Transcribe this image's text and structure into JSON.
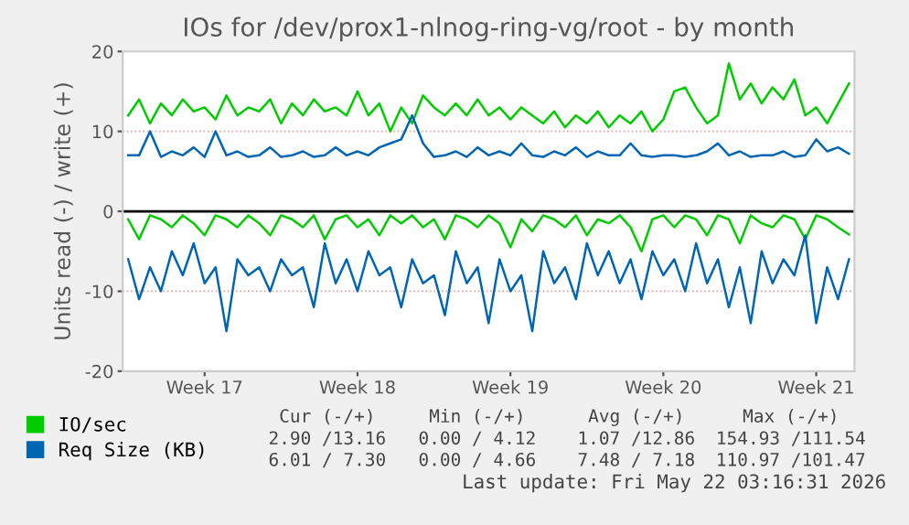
{
  "chart_data": {
    "type": "line",
    "title": "IOs for /dev/prox1-nlnog-ring-vg/root - by month",
    "ylabel": "Units read (-) / write (+)",
    "series": [
      {
        "name": "IO/sec",
        "color": "#00cc00",
        "values": [
          12,
          14,
          11,
          13.5,
          12,
          14,
          12.5,
          13,
          11.5,
          14.5,
          12,
          13,
          12.5,
          14,
          11,
          13.5,
          12,
          14,
          12.5,
          13,
          12,
          15,
          12,
          13.5,
          10,
          13,
          11,
          14.5,
          13,
          12,
          13.5,
          12,
          14,
          12,
          13,
          11.5,
          13,
          12,
          11,
          12.5,
          10.5,
          12,
          11,
          12.5,
          10.5,
          12,
          11,
          12.5,
          10,
          11.5,
          15,
          15.5,
          13,
          11,
          12,
          18.5,
          14,
          16,
          13.5,
          15.5,
          14,
          16.5,
          12,
          13,
          11,
          13.5,
          16
        ]
      },
      {
        "color": "#00cc00",
        "values": [
          -1,
          -3.5,
          -0.5,
          -1,
          -2,
          -0.5,
          -1.5,
          -3,
          -0.5,
          -1,
          -2,
          -0.5,
          -1.5,
          -3,
          -0.5,
          -1,
          -2,
          -0.5,
          -3.5,
          -1,
          -0.5,
          -2,
          -1,
          -3,
          -0.5,
          -1.5,
          -0.5,
          -2,
          -1,
          -3.5,
          -0.5,
          -1,
          -2,
          -0.5,
          -1.5,
          -4.5,
          -1,
          -2.5,
          -0.5,
          -1,
          -2,
          -0.5,
          -3,
          -1,
          -1.5,
          -0.5,
          -2,
          -5,
          -1,
          -0.5,
          -2,
          -0.5,
          -1,
          -3,
          -0.5,
          -1,
          -4,
          -0.5,
          -1.5,
          -2,
          -0.5,
          -1,
          -3.5,
          -0.5,
          -1,
          -2,
          -2.9
        ]
      },
      {
        "name": "Req Size (KB)",
        "color": "#0066b3",
        "values": [
          7,
          7,
          10,
          6.8,
          7.5,
          7,
          8,
          6.8,
          10,
          7,
          7.5,
          6.8,
          7,
          8,
          6.8,
          7,
          7.5,
          6.8,
          7,
          8,
          7,
          7.5,
          7,
          8,
          8.5,
          9,
          12,
          8.5,
          6.8,
          7,
          7.5,
          6.8,
          8,
          7,
          7.5,
          7,
          8.5,
          7,
          6.8,
          7.5,
          7,
          8,
          6.8,
          7.5,
          7,
          7,
          8.5,
          7,
          6.8,
          7,
          7,
          6.8,
          7,
          7.5,
          8.5,
          7,
          7.5,
          6.8,
          7,
          7,
          7.5,
          6.8,
          7,
          9,
          7.5,
          8,
          7.2
        ]
      },
      {
        "color": "#0066b3",
        "values": [
          -6,
          -11,
          -7,
          -10,
          -5,
          -8,
          -4,
          -9,
          -7,
          -15,
          -6,
          -8,
          -7,
          -10,
          -6,
          -8,
          -7,
          -12,
          -4,
          -9,
          -6,
          -10,
          -5,
          -8,
          -7,
          -12,
          -6,
          -9,
          -8,
          -13,
          -5,
          -9,
          -7,
          -14,
          -6,
          -10,
          -8,
          -15,
          -5,
          -9,
          -7,
          -11,
          -4,
          -8,
          -5,
          -9,
          -6,
          -11,
          -5,
          -8,
          -6,
          -10,
          -4,
          -9,
          -6,
          -12,
          -7,
          -14,
          -5,
          -9,
          -6,
          -8,
          -3,
          -14,
          -7,
          -11,
          -6
        ]
      }
    ],
    "categories": [
      null,
      null,
      null,
      null,
      null,
      null,
      null,
      "Week 17",
      null,
      null,
      null,
      null,
      null,
      null,
      null,
      null,
      null,
      null,
      null,
      null,
      null,
      "Week 18",
      null,
      null,
      null,
      null,
      null,
      null,
      null,
      null,
      null,
      null,
      null,
      null,
      null,
      "Week 19",
      null,
      null,
      null,
      null,
      null,
      null,
      null,
      null,
      null,
      null,
      null,
      null,
      null,
      "Week 20",
      null,
      null,
      null,
      null,
      null,
      null,
      null,
      null,
      null,
      null,
      null,
      null,
      null,
      "Week 21",
      null,
      null,
      null
    ],
    "ylim": [
      -20,
      20
    ],
    "yticks": [
      -20,
      -10,
      0,
      10,
      20
    ],
    "ref_lines": [
      {
        "axis": "y",
        "value": 0,
        "color": "#000000"
      }
    ],
    "grid": "y",
    "legend": "bottom left",
    "annotations": [
      "Cur (-/+)",
      "Min (-/+)",
      "Avg (-/+)",
      "Max (-/+)",
      "2.90 /13.16",
      "0.00 / 4.12",
      "1.07 /12.86",
      "154.93 /111.54",
      "6.01 / 7.30",
      "0.00 / 4.66",
      "7.48 / 7.18",
      "110.97 /101.47",
      "Last update: Fri May 22 03:16:31 2026"
    ]
  }
}
